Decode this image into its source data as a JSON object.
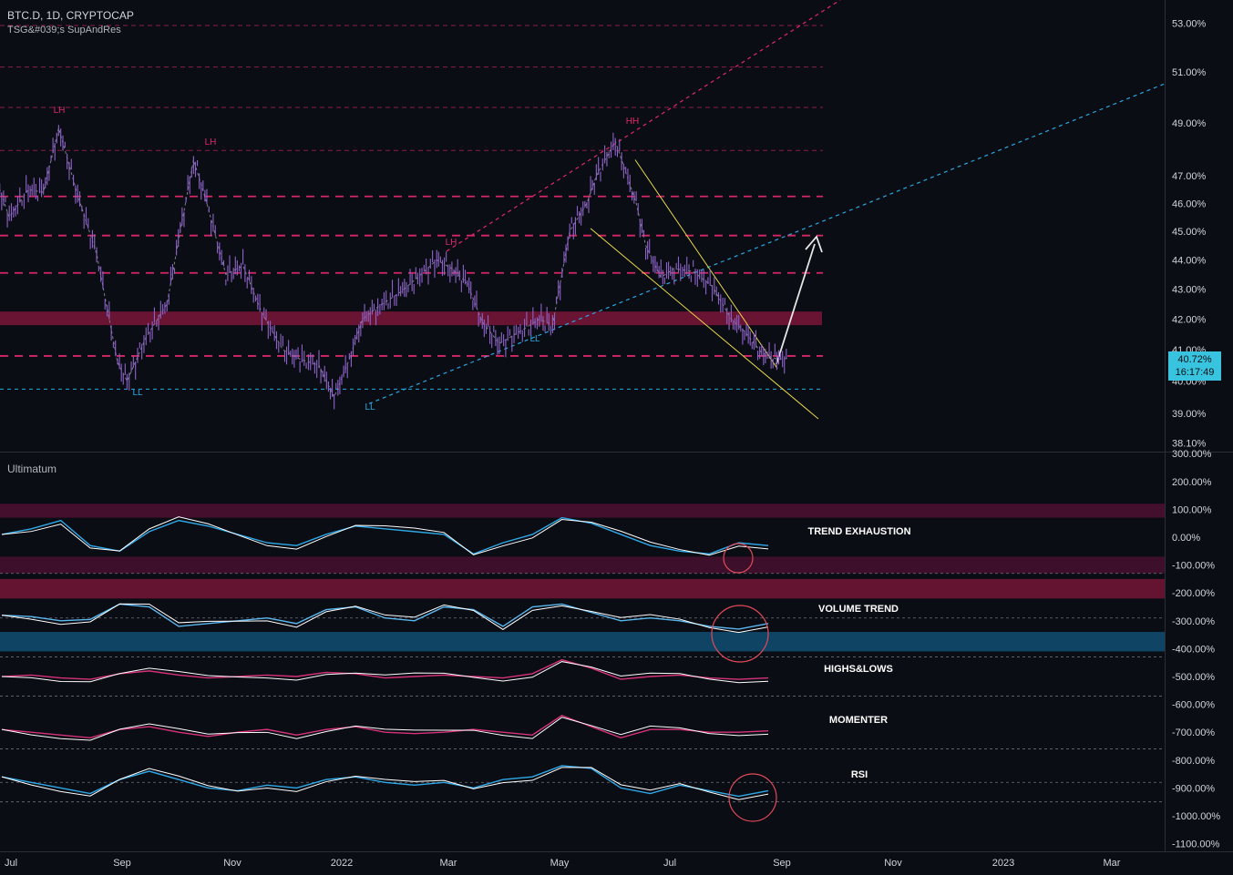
{
  "header": {
    "symbol_line": "BTC.D, 1D, CRYPTOCAP",
    "indicator_line": "TSG&#039;s SupAndRes"
  },
  "price_tag": {
    "value": "40.72%",
    "countdown": "16:17:49",
    "color": "#38c4de"
  },
  "colors": {
    "background": "#0b0d14",
    "candle": "#8e63c9",
    "resistance": "#e0286a",
    "support_blue": "#2aa7e0",
    "wedge": "#e7d84b",
    "arrow": "#e6e6e6",
    "oscillator_blue": "#2fa8e8",
    "oscillator_pink": "#d6327a"
  },
  "chart_data": [
    {
      "type": "line",
      "title": "BTC.D, 1D, CRYPTOCAP",
      "ylabel": "",
      "y_scale": "log",
      "ylim": [
        38.1,
        53.0
      ],
      "y_ticks": [
        "53.00%",
        "51.00%",
        "49.00%",
        "47.00%",
        "46.00%",
        "45.00%",
        "44.00%",
        "43.00%",
        "42.00%",
        "41.00%",
        "40.00%",
        "39.00%",
        "38.10%"
      ],
      "x_ticks": [
        "Jul",
        "Sep",
        "Nov",
        "2022",
        "Mar",
        "May",
        "Jul",
        "Sep",
        "Nov",
        "2023",
        "Mar"
      ],
      "series": [
        {
          "x": [
            "2021-07-01",
            "2021-07-10",
            "2021-07-20",
            "2021-07-28",
            "2021-08-05",
            "2021-08-15",
            "2021-08-25",
            "2021-09-05",
            "2021-09-10",
            "2021-09-20",
            "2021-10-01",
            "2021-10-08",
            "2021-10-15",
            "2021-10-22",
            "2021-11-01",
            "2021-11-10",
            "2021-11-20",
            "2021-12-01",
            "2021-12-10",
            "2021-12-20",
            "2021-12-28",
            "2022-01-05",
            "2022-01-12",
            "2022-01-20",
            "2022-02-01",
            "2022-02-10",
            "2022-02-20",
            "2022-02-28",
            "2022-03-08",
            "2022-03-16",
            "2022-03-25",
            "2022-04-05",
            "2022-04-15",
            "2022-04-22",
            "2022-05-01",
            "2022-05-10",
            "2022-05-15",
            "2022-05-25",
            "2022-06-05",
            "2022-06-10",
            "2022-06-18",
            "2022-06-25",
            "2022-07-05",
            "2022-07-15",
            "2022-07-25",
            "2022-08-01",
            "2022-08-10",
            "2022-08-18",
            "2022-08-24"
          ],
          "values": [
            47.3,
            45.5,
            46.5,
            46.4,
            48.8,
            46.3,
            44.2,
            40.6,
            40.0,
            41.4,
            42.5,
            45.0,
            47.6,
            46.0,
            43.5,
            43.8,
            42.2,
            41.0,
            40.7,
            40.5,
            39.5,
            40.7,
            42.0,
            42.4,
            42.9,
            43.4,
            44.0,
            43.7,
            43.2,
            41.9,
            41.2,
            41.6,
            42.0,
            41.8,
            45.0,
            46.0,
            47.0,
            48.3,
            46.0,
            44.5,
            43.4,
            43.7,
            43.6,
            43.1,
            42.0,
            41.6,
            40.9,
            40.7,
            40.72
          ]
        }
      ],
      "pivot_labels": [
        "LH",
        "LH",
        "LH",
        "HH",
        "LL",
        "LL",
        "LL"
      ],
      "annotations": [
        "resistance band ~42%",
        "falling wedge",
        "projection to ~45%"
      ]
    },
    {
      "type": "line",
      "title": "Ultimatum",
      "ylim": [
        -1100,
        300
      ],
      "y_ticks": [
        "300.00%",
        "200.00%",
        "100.00%",
        "0.00%",
        "-100.00%",
        "-200.00%",
        "-300.00%",
        "-400.00%",
        "-500.00%",
        "-600.00%",
        "-700.00%",
        "-800.00%",
        "-900.00%",
        "-1000.00%",
        "-1100.00%"
      ],
      "panels": [
        "TREND EXHAUSTION",
        "VOLUME TREND",
        "HIGHS&LOWS",
        "MOMENTER",
        "RSI"
      ],
      "series": [
        {
          "name": "TREND EXHAUSTION",
          "values": [
            10,
            30,
            60,
            -30,
            -50,
            20,
            60,
            40,
            10,
            -20,
            -30,
            10,
            40,
            30,
            20,
            10,
            -60,
            -20,
            10,
            70,
            50,
            10,
            -30,
            -50,
            -60,
            -20,
            -30
          ]
        },
        {
          "name": "VOLUME TREND",
          "values": [
            -280,
            -285,
            -300,
            -295,
            -240,
            -250,
            -320,
            -310,
            -300,
            -290,
            -310,
            -260,
            -250,
            -290,
            -300,
            -250,
            -260,
            -320,
            -250,
            -240,
            -270,
            -300,
            -290,
            -300,
            -320,
            -330,
            -310
          ]
        },
        {
          "name": "HIGHS&LOWS",
          "values": [
            -500,
            -495,
            -505,
            -510,
            -490,
            -480,
            -495,
            -505,
            -500,
            -495,
            -500,
            -485,
            -490,
            -505,
            -500,
            -495,
            -500,
            -505,
            -490,
            -440,
            -470,
            -510,
            -500,
            -495,
            -505,
            -510,
            -505
          ]
        },
        {
          "name": "MOMENTER",
          "values": [
            -690,
            -700,
            -710,
            -720,
            -690,
            -680,
            -700,
            -715,
            -700,
            -690,
            -710,
            -690,
            -680,
            -700,
            -705,
            -700,
            -690,
            -700,
            -710,
            -640,
            -680,
            -720,
            -690,
            -690,
            -700,
            -700,
            -695
          ]
        },
        {
          "name": "RSI",
          "values": [
            -860,
            -880,
            -900,
            -920,
            -870,
            -840,
            -870,
            -900,
            -910,
            -890,
            -900,
            -870,
            -860,
            -880,
            -890,
            -880,
            -900,
            -870,
            -860,
            -820,
            -830,
            -900,
            -920,
            -890,
            -910,
            -930,
            -910
          ]
        }
      ]
    }
  ]
}
